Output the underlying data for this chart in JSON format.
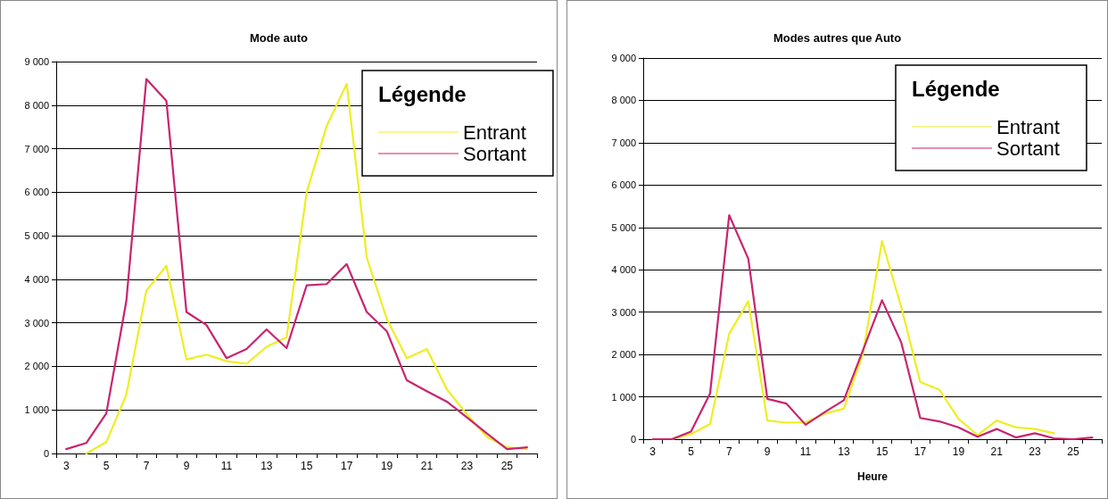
{
  "chart_data": [
    {
      "type": "line",
      "title": "Mode auto",
      "legend_title": "Légende",
      "categories": [
        "3",
        null,
        "5",
        null,
        "7",
        null,
        "9",
        null,
        "11",
        null,
        "13",
        null,
        "15",
        null,
        "17",
        null,
        "19",
        null,
        "21",
        null,
        "23",
        null,
        "25",
        null
      ],
      "series": [
        {
          "name": "Entrant",
          "color": "#eeee22",
          "values": [
            null,
            0,
            260,
            1350,
            3740,
            4310,
            2160,
            2270,
            2120,
            2060,
            2450,
            2670,
            6000,
            7520,
            8490,
            4500,
            3090,
            2190,
            2400,
            1470,
            900,
            380,
            140,
            100
          ]
        },
        {
          "name": "Sortant",
          "color": "#c8246e",
          "values": [
            100,
            240,
            920,
            3500,
            8600,
            8100,
            3250,
            2950,
            2190,
            2400,
            2850,
            2420,
            3860,
            3890,
            4350,
            3250,
            2810,
            1680,
            1430,
            1190,
            830,
            460,
            100,
            140
          ]
        }
      ],
      "ylim": [
        0,
        9000
      ],
      "yticks": [
        0,
        {
          "value": 1000,
          "label": "1 000"
        },
        {
          "value": 2000,
          "label": "2 000"
        },
        {
          "value": 3000,
          "label": "3 000"
        },
        {
          "value": 4000,
          "label": "4 000"
        },
        {
          "value": 5000,
          "label": "5 000"
        },
        {
          "value": 6000,
          "label": "6 000"
        },
        {
          "value": 7000,
          "label": "7 000"
        },
        {
          "value": 8000,
          "label": "8 000"
        },
        {
          "value": 9000,
          "label": "9 000"
        }
      ],
      "grid": "y",
      "legend": "top right",
      "marker": "none",
      "line_style": "solid"
    },
    {
      "type": "line",
      "title": "Modes autres que Auto",
      "xlabel": "Heure",
      "legend_title": "Légende",
      "categories": [
        "3",
        null,
        "5",
        null,
        "7",
        null,
        "9",
        null,
        "11",
        null,
        "13",
        null,
        "15",
        null,
        "17",
        null,
        "19",
        null,
        "21",
        null,
        "23",
        null,
        "25",
        null
      ],
      "series": [
        {
          "name": "Entrant",
          "color": "#eeee22",
          "values": [
            0,
            0,
            120,
            360,
            2490,
            3260,
            440,
            390,
            400,
            600,
            720,
            2010,
            4680,
            3130,
            1350,
            1170,
            480,
            100,
            440,
            280,
            240,
            140,
            null,
            null
          ]
        },
        {
          "name": "Sortant",
          "color": "#c8246e",
          "values": [
            0,
            0,
            180,
            1080,
            5290,
            4260,
            950,
            840,
            340,
            640,
            920,
            2100,
            3280,
            2290,
            500,
            420,
            280,
            60,
            240,
            40,
            140,
            20,
            0,
            40
          ]
        }
      ],
      "ylim": [
        0,
        9000
      ],
      "yticks": [
        0,
        {
          "value": 1000,
          "label": "1 000"
        },
        {
          "value": 2000,
          "label": "2 000"
        },
        {
          "value": 3000,
          "label": "3 000"
        },
        {
          "value": 4000,
          "label": "4 000"
        },
        {
          "value": 5000,
          "label": "5 000"
        },
        {
          "value": 6000,
          "label": "6 000"
        },
        {
          "value": 7000,
          "label": "7 000"
        },
        {
          "value": 8000,
          "label": "8 000"
        },
        {
          "value": 9000,
          "label": "9 000"
        }
      ],
      "grid": "y",
      "legend": "top right",
      "marker": "none",
      "line_style": "solid"
    }
  ]
}
